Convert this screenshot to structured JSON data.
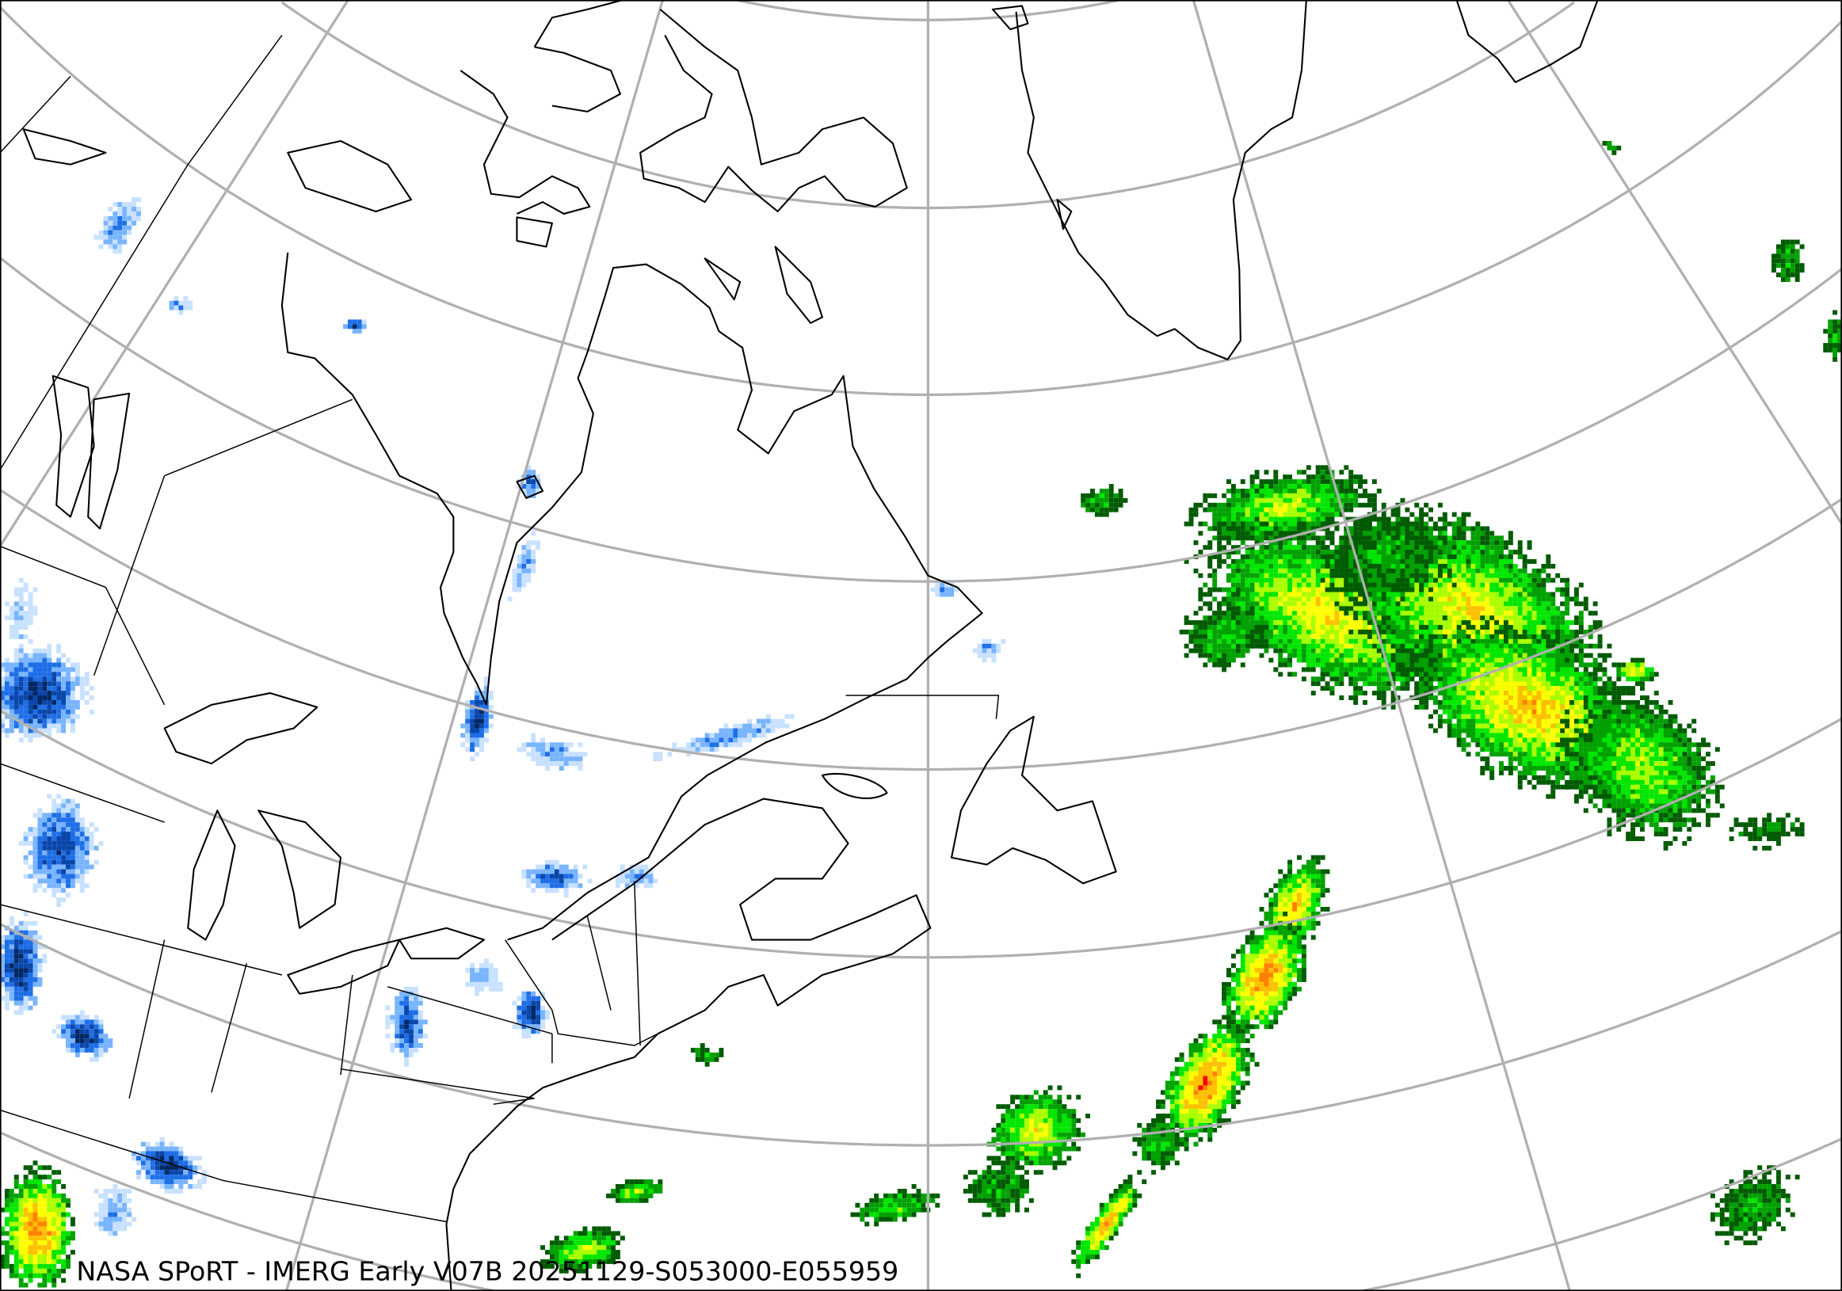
{
  "map": {
    "caption": "NASA SPoRT - IMERG Early V07B 20251129-S053000-E055959",
    "product": "IMERG Early V07B",
    "source": "NASA SPoRT",
    "date": "20251129",
    "start_time": "S053000",
    "end_time": "E055959",
    "region": "Northeastern North America / North Atlantic",
    "projection": "conic",
    "gridlines": true,
    "colors": {
      "background": "#ffffff",
      "gridline": "#b0b0b0",
      "coastline": "#000000",
      "rain_scale": [
        "#005a00",
        "#00a000",
        "#00e600",
        "#aaff00",
        "#ffff00",
        "#ffc000",
        "#ff8000",
        "#ff0000"
      ],
      "snow_scale": [
        "#c8e1ff",
        "#78b4ff",
        "#1e6ee6",
        "#0a46aa",
        "#002864",
        "#ff5ab4"
      ]
    }
  }
}
